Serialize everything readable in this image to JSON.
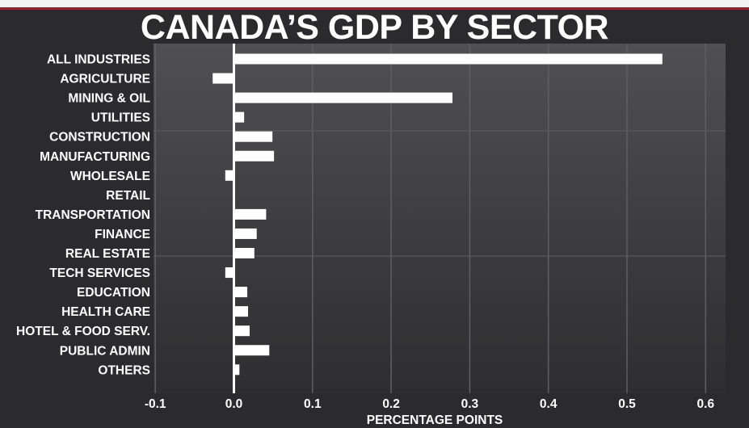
{
  "colors": {
    "background": "#2b2b2e",
    "bar": "#ffffff",
    "text": "#ffffff",
    "grid": "#5f5f63",
    "zero_line": "#ffffff",
    "accent_red": "#b3131b"
  },
  "chart_data": {
    "type": "bar",
    "orientation": "horizontal",
    "title": "CANADA’S GDP BY SECTOR",
    "xlabel": "PERCENTAGE POINTS",
    "ylabel": "",
    "xlim": [
      -0.1,
      0.6
    ],
    "xticks": [
      -0.1,
      0.0,
      0.1,
      0.2,
      0.3,
      0.4,
      0.5,
      0.6
    ],
    "xtick_labels": [
      "-0.1",
      "0.0",
      "0.1",
      "0.2",
      "0.3",
      "0.4",
      "0.5",
      "0.6"
    ],
    "grid": true,
    "legend": "none",
    "categories": [
      "ALL INDUSTRIES",
      "AGRICULTURE",
      "MINING & OIL",
      "UTILITIES",
      "CONSTRUCTION",
      "MANUFACTURING",
      "WHOLESALE",
      "RETAIL",
      "TRANSPORTATION",
      "FINANCE",
      "REAL ESTATE",
      "TECH SERVICES",
      "EDUCATION",
      "HEALTH CARE",
      "HOTEL & FOOD SERV.",
      "PUBLIC ADMIN",
      "OTHERS"
    ],
    "values": [
      0.545,
      -0.027,
      0.278,
      0.013,
      0.049,
      0.051,
      -0.011,
      0.0,
      0.041,
      0.029,
      0.026,
      -0.011,
      0.017,
      0.018,
      0.02,
      0.045,
      0.007
    ]
  }
}
